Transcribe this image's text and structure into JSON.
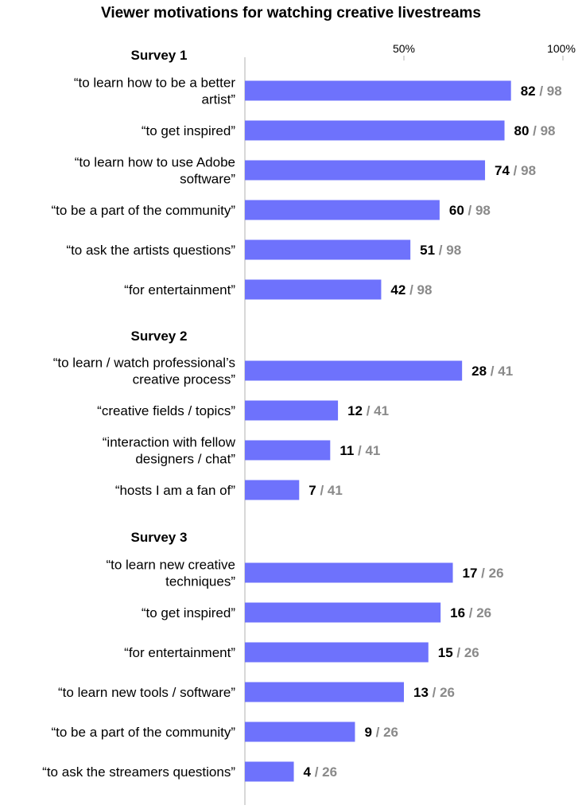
{
  "chart_data": {
    "type": "bar",
    "orientation": "horizontal",
    "title": "Viewer motivations for watching creative livestreams",
    "x_tick_labels": [
      "50%",
      "100%"
    ],
    "xlim": [
      0,
      100
    ],
    "grid": false,
    "colors": {
      "bar": "#6e72fc",
      "axis": "#b0b0b0",
      "total_text": "#8a8a8a"
    },
    "groups": [
      {
        "name": "Survey 1",
        "items": [
          {
            "label": "“to learn how to be a better artist”",
            "count": 82,
            "total_text": "/ 98"
          },
          {
            "label": "“to get inspired”",
            "count": 80,
            "total_text": "/ 98"
          },
          {
            "label": "“to learn how to use Adobe software”",
            "count": 74,
            "total_text": "/ 98"
          },
          {
            "label": "“to be a part of the community”",
            "count": 60,
            "total_text": "/ 98"
          },
          {
            "label": "“to ask the artists questions”",
            "count": 51,
            "total_text": "/ 98"
          },
          {
            "label": "“for entertainment”",
            "count": 42,
            "total_text": "/ 98"
          }
        ]
      },
      {
        "name": "Survey 2",
        "items": [
          {
            "label": "“to learn / watch professional’s creative process”",
            "count": 28,
            "total_text": "/ 41"
          },
          {
            "label": "“creative fields / topics”",
            "count": 12,
            "total_text": "/ 41"
          },
          {
            "label": "“interaction with fellow designers / chat”",
            "count": 11,
            "total_text": "/ 41"
          },
          {
            "label": "“hosts I am a fan of”",
            "count": 7,
            "total_text": "/ 41"
          }
        ]
      },
      {
        "name": "Survey 3",
        "items": [
          {
            "label": "“to learn new creative techniques”",
            "count": 17,
            "total_text": "/ 26"
          },
          {
            "label": "“to get inspired”",
            "count": 16,
            "total_text": "/ 26"
          },
          {
            "label": "“for entertainment”",
            "count": 15,
            "total_text": "/ 26"
          },
          {
            "label": "“to learn new tools / software”",
            "count": 13,
            "total_text": "/ 26"
          },
          {
            "label": "“to be a part of the community”",
            "count": 9,
            "total_text": "/ 26"
          },
          {
            "label": "“to ask the streamers questions”",
            "count": 4,
            "total_text": "/ 26"
          }
        ]
      }
    ]
  }
}
